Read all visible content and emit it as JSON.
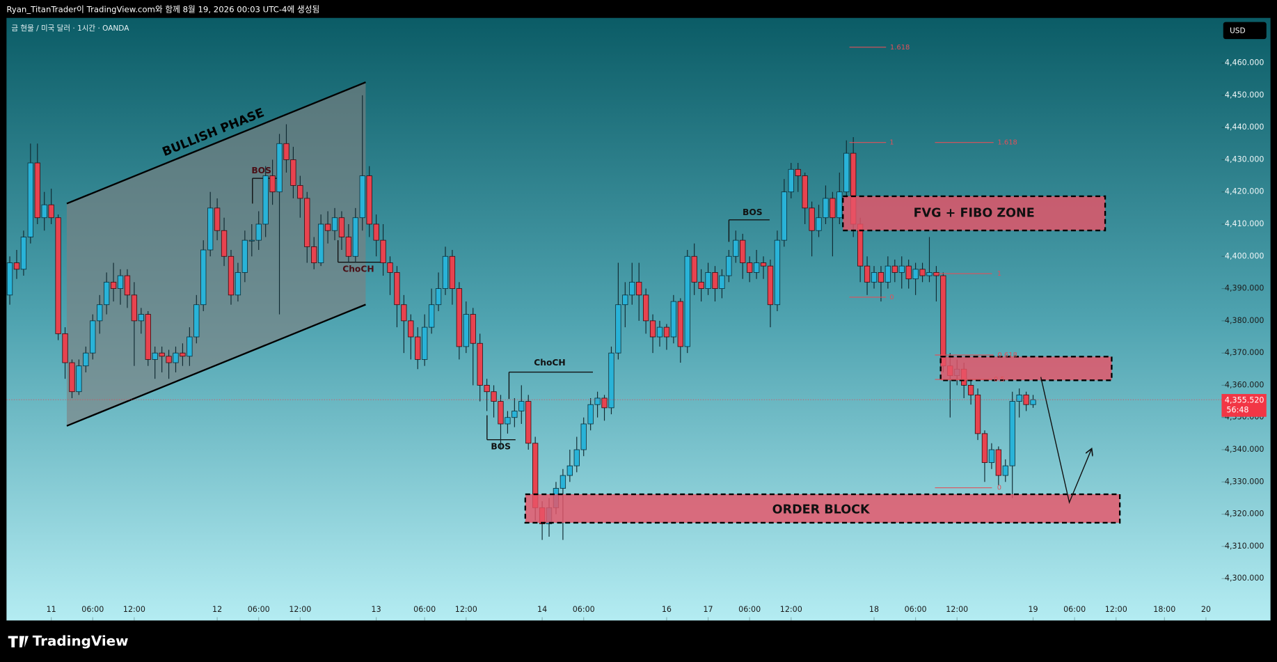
{
  "chart_data": {
    "type": "candlestick",
    "caption": "Ryan_TitanTrader이 TradingView.com와 함께 8월 19, 2026 00:03 UTC-4에 생성됨",
    "title": "금 현물 / 미국 달러 · 1시간 · OANDA",
    "currency": "USD",
    "brand": "TradingView",
    "ylim": [
      4287,
      4474
    ],
    "yticks": [
      {
        "value": 4300,
        "label": "4,300.000"
      },
      {
        "value": 4310,
        "label": "4,310.000"
      },
      {
        "value": 4320,
        "label": "4,320.000"
      },
      {
        "value": 4330,
        "label": "4,330.000"
      },
      {
        "value": 4340,
        "label": "4,340.000"
      },
      {
        "value": 4350,
        "label": "4,350.000"
      },
      {
        "value": 4360,
        "label": "4,360.000"
      },
      {
        "value": 4370,
        "label": "4,370.000"
      },
      {
        "value": 4380,
        "label": "4,380.000"
      },
      {
        "value": 4390,
        "label": "4,390.000"
      },
      {
        "value": 4400,
        "label": "4,400.000"
      },
      {
        "value": 4410,
        "label": "4,410.000"
      },
      {
        "value": 4420,
        "label": "4,420.000"
      },
      {
        "value": 4430,
        "label": "4,430.000"
      },
      {
        "value": 4440,
        "label": "4,440.000"
      },
      {
        "value": 4450,
        "label": "4,450.000"
      },
      {
        "value": 4460,
        "label": "4,460.000"
      }
    ],
    "xticks": [
      {
        "value": 6,
        "label": "11"
      },
      {
        "value": 12,
        "label": "06:00"
      },
      {
        "value": 18,
        "label": "12:00"
      },
      {
        "value": 30,
        "label": "12"
      },
      {
        "value": 36,
        "label": "06:00"
      },
      {
        "value": 42,
        "label": "12:00"
      },
      {
        "value": 53,
        "label": "13"
      },
      {
        "value": 60,
        "label": "06:00"
      },
      {
        "value": 66,
        "label": "12:00"
      },
      {
        "value": 77,
        "label": "14"
      },
      {
        "value": 83,
        "label": "06:00"
      },
      {
        "value": 95,
        "label": "16"
      },
      {
        "value": 101,
        "label": "17"
      },
      {
        "value": 107,
        "label": "06:00"
      },
      {
        "value": 113,
        "label": "12:00"
      },
      {
        "value": 125,
        "label": "18"
      },
      {
        "value": 131,
        "label": "06:00"
      },
      {
        "value": 137,
        "label": "12:00"
      },
      {
        "value": 148,
        "label": "19"
      },
      {
        "value": 154,
        "label": "06:00"
      },
      {
        "value": 160,
        "label": "12:00"
      },
      {
        "value": 167,
        "label": "18:00"
      },
      {
        "value": 173,
        "label": "20"
      }
    ],
    "up_color": "#29b3d8",
    "down_color": "#e8434f",
    "current_price": {
      "value": 4355.52,
      "label": "4,355.520"
    },
    "countdown": "56:48",
    "annotations": {
      "channel": "BULLISH PHASE",
      "structure": [
        "BOS",
        "ChoCH",
        "ChoCH",
        "BOS",
        "BOS"
      ],
      "zones": [
        "FVG + FIBO ZONE",
        "ORDER BLOCK"
      ],
      "fib": [
        "1.618",
        "1",
        "1.618",
        "1",
        "0",
        "0.618",
        "0.5",
        "0"
      ]
    },
    "ohlc": [
      [
        4388,
        4400,
        4385,
        4398
      ],
      [
        4398,
        4402,
        4393,
        4396
      ],
      [
        4396,
        4408,
        4394,
        4406
      ],
      [
        4406,
        4435,
        4404,
        4429
      ],
      [
        4429,
        4435,
        4410,
        4412
      ],
      [
        4412,
        4420,
        4408,
        4416
      ],
      [
        4416,
        4421,
        4410,
        4412
      ],
      [
        4412,
        4413,
        4374,
        4376
      ],
      [
        4376,
        4378,
        4362,
        4367
      ],
      [
        4367,
        4368,
        4356,
        4358
      ],
      [
        4358,
        4368,
        4357,
        4366
      ],
      [
        4366,
        4372,
        4364,
        4370
      ],
      [
        4370,
        4382,
        4368,
        4380
      ],
      [
        4380,
        4388,
        4376,
        4385
      ],
      [
        4385,
        4395,
        4382,
        4392
      ],
      [
        4392,
        4398,
        4386,
        4390
      ],
      [
        4390,
        4396,
        4385,
        4394
      ],
      [
        4394,
        4396,
        4384,
        4388
      ],
      [
        4388,
        4392,
        4366,
        4380
      ],
      [
        4380,
        4384,
        4376,
        4382
      ],
      [
        4382,
        4383,
        4366,
        4368
      ],
      [
        4368,
        4372,
        4362,
        4370
      ],
      [
        4370,
        4372,
        4364,
        4369
      ],
      [
        4369,
        4371,
        4362,
        4367
      ],
      [
        4367,
        4372,
        4364,
        4370
      ],
      [
        4370,
        4373,
        4366,
        4369
      ],
      [
        4369,
        4378,
        4366,
        4375
      ],
      [
        4375,
        4388,
        4373,
        4385
      ],
      [
        4385,
        4405,
        4383,
        4402
      ],
      [
        4402,
        4420,
        4400,
        4415
      ],
      [
        4415,
        4418,
        4405,
        4408
      ],
      [
        4408,
        4412,
        4397,
        4400
      ],
      [
        4400,
        4402,
        4385,
        4388
      ],
      [
        4388,
        4398,
        4386,
        4395
      ],
      [
        4395,
        4408,
        4392,
        4405
      ],
      [
        4405,
        4410,
        4400,
        4405
      ],
      [
        4405,
        4414,
        4402,
        4410
      ],
      [
        4410,
        4428,
        4406,
        4425
      ],
      [
        4425,
        4430,
        4416,
        4420
      ],
      [
        4420,
        4438,
        4382,
        4435
      ],
      [
        4435,
        4441,
        4426,
        4430
      ],
      [
        4430,
        4434,
        4418,
        4422
      ],
      [
        4422,
        4425,
        4412,
        4418
      ],
      [
        4418,
        4420,
        4398,
        4403
      ],
      [
        4403,
        4406,
        4396,
        4398
      ],
      [
        4398,
        4413,
        4397,
        4410
      ],
      [
        4410,
        4414,
        4404,
        4408
      ],
      [
        4408,
        4415,
        4405,
        4412
      ],
      [
        4412,
        4414,
        4402,
        4406
      ],
      [
        4406,
        4410,
        4398,
        4400
      ],
      [
        4400,
        4415,
        4398,
        4412
      ],
      [
        4412,
        4450,
        4408,
        4425
      ],
      [
        4425,
        4428,
        4406,
        4410
      ],
      [
        4410,
        4413,
        4400,
        4405
      ],
      [
        4405,
        4410,
        4394,
        4398
      ],
      [
        4398,
        4400,
        4388,
        4395
      ],
      [
        4395,
        4397,
        4378,
        4385
      ],
      [
        4385,
        4388,
        4370,
        4380
      ],
      [
        4380,
        4382,
        4368,
        4375
      ],
      [
        4375,
        4378,
        4365,
        4368
      ],
      [
        4368,
        4382,
        4366,
        4378
      ],
      [
        4378,
        4390,
        4376,
        4385
      ],
      [
        4385,
        4395,
        4383,
        4390
      ],
      [
        4390,
        4403,
        4388,
        4400
      ],
      [
        4400,
        4402,
        4385,
        4390
      ],
      [
        4390,
        4392,
        4368,
        4372
      ],
      [
        4372,
        4386,
        4370,
        4382
      ],
      [
        4382,
        4384,
        4360,
        4373
      ],
      [
        4373,
        4376,
        4355,
        4360
      ],
      [
        4360,
        4362,
        4352,
        4358
      ],
      [
        4358,
        4360,
        4350,
        4355
      ],
      [
        4355,
        4357,
        4340,
        4348
      ],
      [
        4348,
        4352,
        4345,
        4350
      ],
      [
        4350,
        4356,
        4347,
        4352
      ],
      [
        4352,
        4360,
        4348,
        4355
      ],
      [
        4355,
        4357,
        4340,
        4342
      ],
      [
        4342,
        4344,
        4318,
        4322
      ],
      [
        4322,
        4324,
        4312,
        4317
      ],
      [
        4317,
        4325,
        4313,
        4322
      ],
      [
        4322,
        4330,
        4320,
        4328
      ],
      [
        4328,
        4334,
        4312,
        4332
      ],
      [
        4332,
        4340,
        4330,
        4335
      ],
      [
        4335,
        4344,
        4333,
        4340
      ],
      [
        4340,
        4350,
        4338,
        4348
      ],
      [
        4348,
        4356,
        4346,
        4354
      ],
      [
        4354,
        4358,
        4350,
        4356
      ],
      [
        4356,
        4357,
        4349,
        4353
      ],
      [
        4353,
        4372,
        4351,
        4370
      ],
      [
        4370,
        4398,
        4368,
        4385
      ],
      [
        4385,
        4392,
        4378,
        4388
      ],
      [
        4388,
        4398,
        4385,
        4392
      ],
      [
        4392,
        4398,
        4380,
        4388
      ],
      [
        4388,
        4390,
        4376,
        4380
      ],
      [
        4380,
        4382,
        4370,
        4375
      ],
      [
        4375,
        4380,
        4372,
        4378
      ],
      [
        4378,
        4379,
        4371,
        4375
      ],
      [
        4375,
        4388,
        4373,
        4386
      ],
      [
        4386,
        4387,
        4367,
        4372
      ],
      [
        4372,
        4402,
        4370,
        4400
      ],
      [
        4400,
        4404,
        4388,
        4392
      ],
      [
        4392,
        4396,
        4386,
        4390
      ],
      [
        4390,
        4398,
        4388,
        4395
      ],
      [
        4395,
        4397,
        4386,
        4390
      ],
      [
        4390,
        4396,
        4387,
        4394
      ],
      [
        4394,
        4402,
        4392,
        4400
      ],
      [
        4400,
        4408,
        4398,
        4405
      ],
      [
        4405,
        4407,
        4393,
        4398
      ],
      [
        4398,
        4400,
        4392,
        4395
      ],
      [
        4395,
        4402,
        4393,
        4398
      ],
      [
        4398,
        4400,
        4393,
        4397
      ],
      [
        4397,
        4399,
        4378,
        4385
      ],
      [
        4385,
        4408,
        4383,
        4405
      ],
      [
        4405,
        4424,
        4403,
        4420
      ],
      [
        4420,
        4429,
        4418,
        4427
      ],
      [
        4427,
        4429,
        4420,
        4425
      ],
      [
        4425,
        4426,
        4410,
        4415
      ],
      [
        4415,
        4417,
        4400,
        4408
      ],
      [
        4408,
        4416,
        4406,
        4412
      ],
      [
        4412,
        4422,
        4410,
        4418
      ],
      [
        4418,
        4420,
        4400,
        4412
      ],
      [
        4412,
        4426,
        4410,
        4420
      ],
      [
        4420,
        4436,
        4418,
        4432
      ],
      [
        4432,
        4437,
        4406,
        4410
      ],
      [
        4410,
        4412,
        4392,
        4397
      ],
      [
        4397,
        4400,
        4388,
        4392
      ],
      [
        4392,
        4397,
        4390,
        4395
      ],
      [
        4395,
        4397,
        4386,
        4392
      ],
      [
        4392,
        4400,
        4390,
        4397
      ],
      [
        4397,
        4399,
        4392,
        4395
      ],
      [
        4395,
        4400,
        4390,
        4397
      ],
      [
        4397,
        4399,
        4390,
        4393
      ],
      [
        4393,
        4398,
        4388,
        4396
      ],
      [
        4396,
        4398,
        4392,
        4394
      ],
      [
        4394,
        4406,
        4392,
        4395
      ],
      [
        4395,
        4397,
        4386,
        4394
      ],
      [
        4394,
        4395,
        4364,
        4366
      ],
      [
        4366,
        4370,
        4350,
        4363
      ],
      [
        4363,
        4368,
        4360,
        4365
      ],
      [
        4365,
        4367,
        4356,
        4360
      ],
      [
        4360,
        4362,
        4354,
        4357
      ],
      [
        4357,
        4359,
        4343,
        4345
      ],
      [
        4345,
        4346,
        4330,
        4336
      ],
      [
        4336,
        4342,
        4334,
        4340
      ],
      [
        4340,
        4341,
        4329,
        4332
      ],
      [
        4332,
        4337,
        4330,
        4335
      ],
      [
        4335,
        4358,
        4325,
        4355
      ],
      [
        4355,
        4359,
        4350,
        4357
      ],
      [
        4357,
        4358,
        4352,
        4354
      ],
      [
        4354,
        4357,
        4353,
        4355.52
      ]
    ]
  }
}
